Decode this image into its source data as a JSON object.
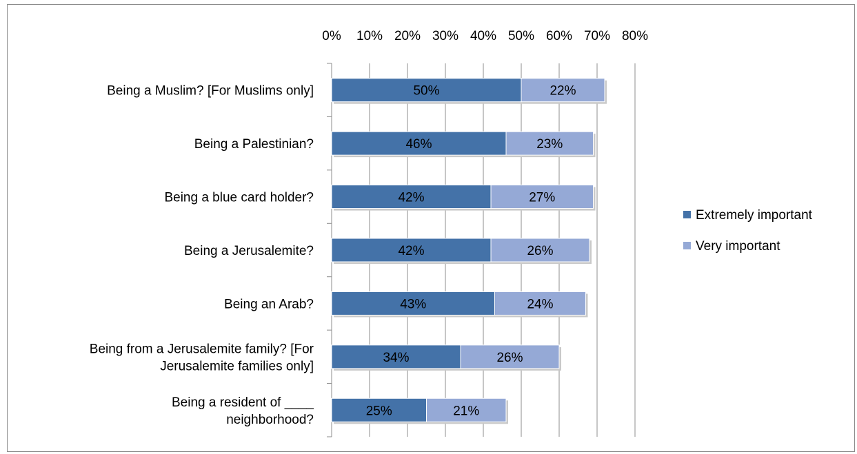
{
  "chart_data": {
    "type": "bar",
    "orientation": "horizontal",
    "stacked": true,
    "title": "",
    "xlabel": "",
    "ylabel": "",
    "xlim": [
      0,
      80
    ],
    "x_ticks": [
      "0%",
      "10%",
      "20%",
      "30%",
      "40%",
      "50%",
      "60%",
      "70%",
      "80%"
    ],
    "x_axis_position": "top",
    "grid": true,
    "legend_position": "right",
    "categories": [
      [
        "Being a Muslim? [For Muslims only]"
      ],
      [
        "Being a Palestinian?"
      ],
      [
        "Being a blue card holder?"
      ],
      [
        "Being a Jerusalemite?"
      ],
      [
        "Being an Arab?"
      ],
      [
        "Being from a Jerusalemite family? [For",
        "Jerusalemite families only]"
      ],
      [
        "Being a resident of ____",
        "neighborhood?"
      ]
    ],
    "series": [
      {
        "name": "Extremely important",
        "color": "#4472a8",
        "values": [
          50,
          46,
          42,
          42,
          43,
          34,
          25
        ],
        "labels": [
          "50%",
          "46%",
          "42%",
          "42%",
          "43%",
          "34%",
          "25%"
        ]
      },
      {
        "name": "Very important",
        "color": "#95a9d6",
        "values": [
          22,
          23,
          27,
          26,
          24,
          26,
          21
        ],
        "labels": [
          "22%",
          "23%",
          "27%",
          "26%",
          "24%",
          "26%",
          "21%"
        ]
      }
    ]
  }
}
